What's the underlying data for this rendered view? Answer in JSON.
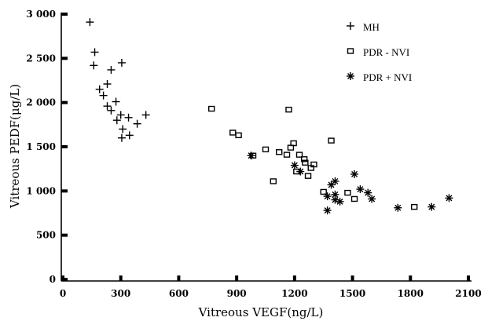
{
  "chart_data": {
    "type": "scatter",
    "title": "",
    "xlabel": "Vitreous VEGF(ng/L)",
    "ylabel": "Vitreous PEDF(μg/L)",
    "xlim": [
      0,
      2100
    ],
    "ylim": [
      0,
      3000
    ],
    "x_ticks": [
      0,
      300,
      600,
      900,
      1200,
      1500,
      1800,
      2100
    ],
    "y_ticks": [
      0,
      500,
      1000,
      1500,
      2000,
      2500,
      3000
    ],
    "x_tick_labels": [
      "0",
      "300",
      "600",
      "900",
      "1200",
      "1500",
      "1800",
      "2100"
    ],
    "y_tick_labels": [
      "0",
      "500",
      "1 000",
      "1 500",
      "2 000",
      "2 500",
      "3 000"
    ],
    "grid": false,
    "legend_position": "top-right",
    "series": [
      {
        "name": "MH",
        "marker": "plus",
        "points": [
          [
            140,
            2910
          ],
          [
            165,
            2570
          ],
          [
            160,
            2420
          ],
          [
            305,
            2450
          ],
          [
            250,
            2370
          ],
          [
            230,
            2210
          ],
          [
            190,
            2150
          ],
          [
            210,
            2080
          ],
          [
            275,
            2010
          ],
          [
            230,
            1960
          ],
          [
            250,
            1910
          ],
          [
            300,
            1860
          ],
          [
            340,
            1830
          ],
          [
            430,
            1860
          ],
          [
            280,
            1800
          ],
          [
            385,
            1760
          ],
          [
            310,
            1700
          ],
          [
            345,
            1630
          ],
          [
            305,
            1600
          ]
        ]
      },
      {
        "name": "PDR - NVI",
        "marker": "square",
        "points": [
          [
            770,
            1930
          ],
          [
            1170,
            1920
          ],
          [
            880,
            1660
          ],
          [
            910,
            1630
          ],
          [
            1390,
            1570
          ],
          [
            1195,
            1540
          ],
          [
            1180,
            1490
          ],
          [
            1050,
            1470
          ],
          [
            1120,
            1440
          ],
          [
            1160,
            1410
          ],
          [
            985,
            1400
          ],
          [
            1225,
            1410
          ],
          [
            1250,
            1360
          ],
          [
            1255,
            1320
          ],
          [
            1300,
            1300
          ],
          [
            1285,
            1260
          ],
          [
            1210,
            1220
          ],
          [
            1270,
            1170
          ],
          [
            1090,
            1110
          ],
          [
            1350,
            990
          ],
          [
            1475,
            980
          ],
          [
            1510,
            910
          ],
          [
            1820,
            820
          ]
        ]
      },
      {
        "name": "PDR + NVI",
        "marker": "star",
        "points": [
          [
            975,
            1400
          ],
          [
            1200,
            1290
          ],
          [
            1230,
            1220
          ],
          [
            1510,
            1190
          ],
          [
            1410,
            1110
          ],
          [
            1390,
            1070
          ],
          [
            1540,
            1020
          ],
          [
            1580,
            980
          ],
          [
            1410,
            960
          ],
          [
            1370,
            940
          ],
          [
            1600,
            910
          ],
          [
            1410,
            900
          ],
          [
            1435,
            880
          ],
          [
            1735,
            810
          ],
          [
            1910,
            820
          ],
          [
            1370,
            780
          ],
          [
            2000,
            920
          ]
        ]
      }
    ]
  }
}
